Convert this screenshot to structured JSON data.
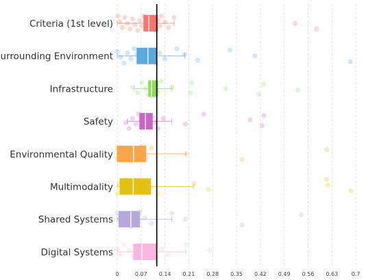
{
  "chart_data": {
    "type": "box",
    "title": "",
    "xlabel": "",
    "ylabel": "",
    "xlim": [
      0,
      0.74
    ],
    "x_ticks": [
      0,
      0.07,
      0.14,
      0.21,
      0.28,
      0.35,
      0.42,
      0.49,
      0.56,
      0.63,
      0.7
    ],
    "x_tick_labels": [
      "0",
      "0.07",
      "0.14",
      "0.21",
      "0.28",
      "0.35",
      "0.42",
      "0.49",
      "0.56",
      "0.63",
      "0.7"
    ],
    "reference_line": 0.116,
    "grid": "vertical dashed",
    "categories": [
      "Criteria (1st level)",
      "Surrounding Environment",
      "Infrastructure",
      "Safety",
      "Environmental Quality",
      "Multimodality",
      "Shared Systems",
      "Digital Systems"
    ],
    "colors": [
      "#f8766d",
      "#5ba9dd",
      "#8fdc5a",
      "#cc66c4",
      "#f9a64a",
      "#e3c212",
      "#b7a9dc",
      "#f9b6df"
    ],
    "series": [
      {
        "name": "Criteria (1st level)",
        "box": {
          "whisker_low": 0.0,
          "q1": 0.078,
          "median": 0.093,
          "q3": 0.118,
          "whisker_high": 0.167
        },
        "points": [
          0.002,
          0.008,
          0.015,
          0.022,
          0.03,
          0.038,
          0.045,
          0.052,
          0.06,
          0.066,
          0.072,
          0.078,
          0.083,
          0.088,
          0.092,
          0.095,
          0.1,
          0.105,
          0.11,
          0.115,
          0.12,
          0.125,
          0.13,
          0.14,
          0.15,
          0.167,
          0.522,
          0.585
        ]
      },
      {
        "name": "Surrounding Environment",
        "box": {
          "whisker_low": 0.0,
          "q1": 0.058,
          "median": 0.09,
          "q3": 0.114,
          "whisker_high": 0.198
        },
        "points": [
          0.0,
          0.01,
          0.02,
          0.03,
          0.04,
          0.05,
          0.058,
          0.065,
          0.072,
          0.08,
          0.09,
          0.1,
          0.108,
          0.114,
          0.125,
          0.14,
          0.175,
          0.198,
          0.236,
          0.331,
          0.404,
          0.684
        ]
      },
      {
        "name": "Infrastructure",
        "box": {
          "whisker_low": 0.05,
          "q1": 0.092,
          "median": 0.101,
          "q3": 0.119,
          "whisker_high": 0.16
        },
        "points": [
          0.045,
          0.06,
          0.072,
          0.083,
          0.09,
          0.095,
          0.1,
          0.104,
          0.11,
          0.118,
          0.13,
          0.16,
          0.214,
          0.218,
          0.318,
          0.415,
          0.43,
          0.53
        ]
      },
      {
        "name": "Safety",
        "box": {
          "whisker_low": 0.03,
          "q1": 0.066,
          "median": 0.083,
          "q3": 0.103,
          "whisker_high": 0.16
        },
        "points": [
          0.025,
          0.035,
          0.045,
          0.055,
          0.063,
          0.07,
          0.078,
          0.083,
          0.09,
          0.097,
          0.103,
          0.11,
          0.12,
          0.135,
          0.2,
          0.254,
          0.39,
          0.425,
          0.43
        ]
      },
      {
        "name": "Environmental Quality",
        "box": {
          "whisker_low": 0.0,
          "q1": 0.0,
          "median": 0.048,
          "q3": 0.084,
          "whisker_high": 0.202
        },
        "points": [
          0.0,
          0.0,
          0.004,
          0.01,
          0.018,
          0.028,
          0.04,
          0.05,
          0.062,
          0.07,
          0.078,
          0.084,
          0.1,
          0.202,
          0.366,
          0.615
        ]
      },
      {
        "name": "Multimodality",
        "box": {
          "whisker_low": 0.0,
          "q1": 0.008,
          "median": 0.047,
          "q3": 0.098,
          "whisker_high": 0.225
        },
        "points": [
          0.0,
          0.006,
          0.015,
          0.025,
          0.035,
          0.047,
          0.06,
          0.072,
          0.082,
          0.09,
          0.098,
          0.12,
          0.225,
          0.268,
          0.614,
          0.618,
          0.686
        ]
      },
      {
        "name": "Shared Systems",
        "box": {
          "whisker_low": 0.0,
          "q1": 0.005,
          "median": 0.04,
          "q3": 0.066,
          "whisker_high": 0.16
        },
        "points": [
          0.0,
          0.005,
          0.012,
          0.02,
          0.03,
          0.04,
          0.05,
          0.058,
          0.066,
          0.08,
          0.1,
          0.16,
          0.2,
          0.366,
          0.54
        ]
      },
      {
        "name": "Digital Systems",
        "box": {
          "whisker_low": 0.0,
          "q1": 0.048,
          "median": 0.072,
          "q3": 0.115,
          "whisker_high": 0.202
        },
        "points": [
          0.0,
          0.01,
          0.02,
          0.035,
          0.048,
          0.06,
          0.072,
          0.085,
          0.095,
          0.105,
          0.115,
          0.13,
          0.15,
          0.202,
          0.27
        ]
      }
    ]
  }
}
